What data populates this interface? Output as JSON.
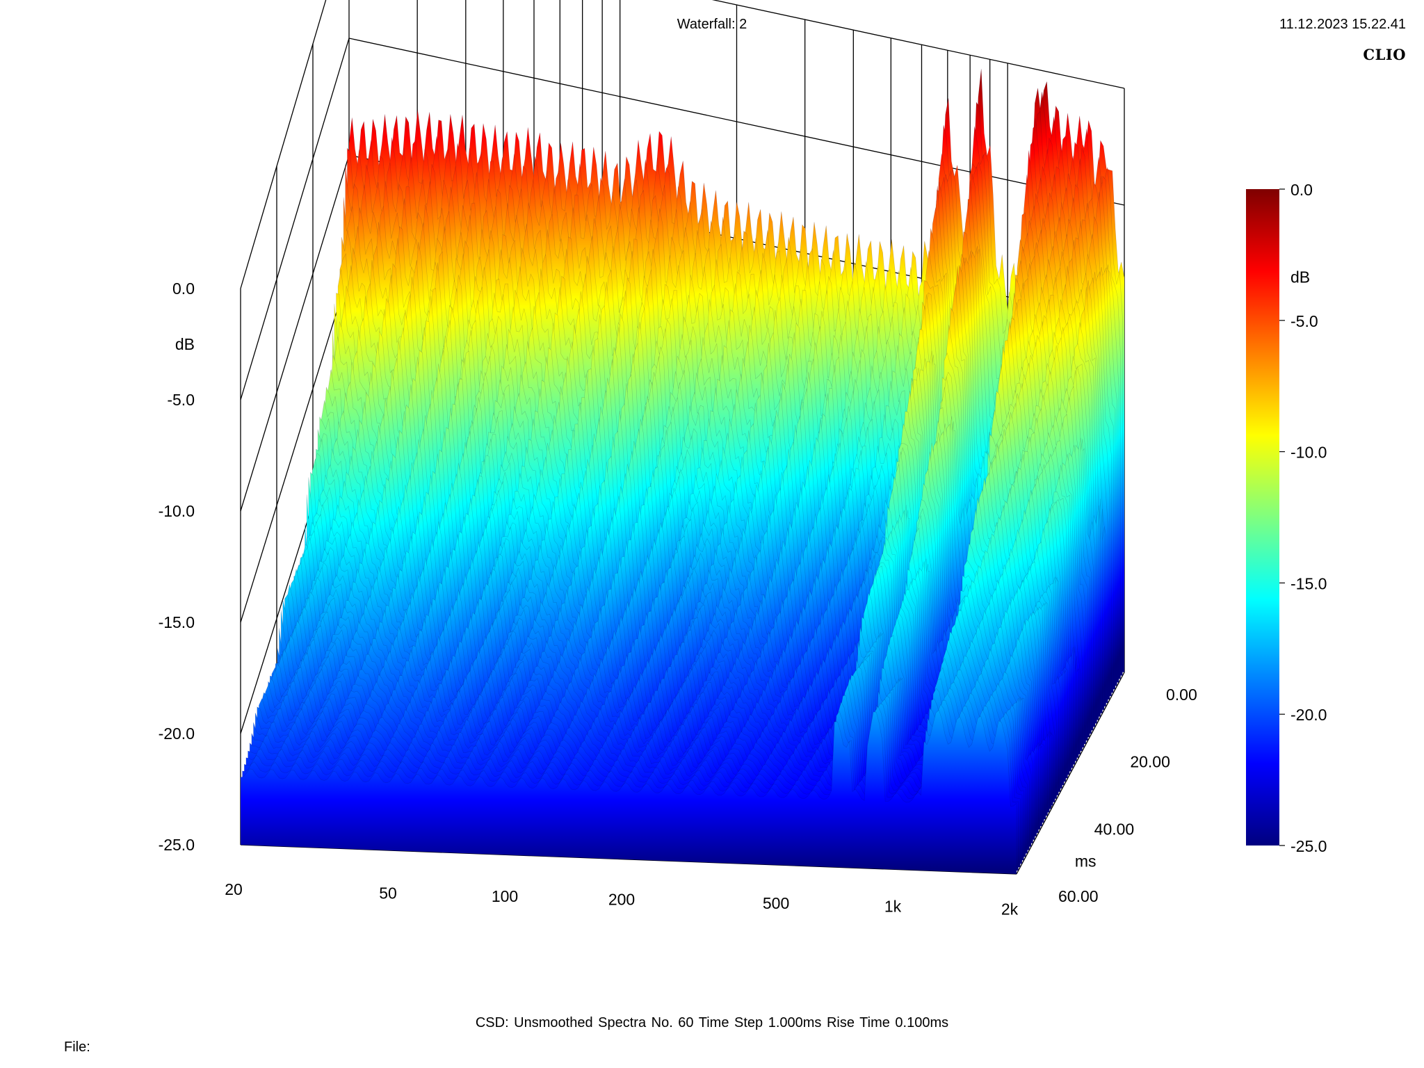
{
  "header": {
    "title": "Waterfall: 2",
    "timestamp": "11.12.2023 15.22.41",
    "brand": "CLIO"
  },
  "footer": {
    "info": "CSD:   Unsmoothed   Spectra No. 60   Time Step 1.000ms   Rise Time 0.100ms",
    "file_label": "File:"
  },
  "colors": {
    "scale": [
      "#00007f",
      "#0000ff",
      "#007fff",
      "#00ffff",
      "#7fff7f",
      "#ffff00",
      "#ff7f00",
      "#ff0000",
      "#7f0000"
    ],
    "axes": "#000000",
    "background": "#ffffff"
  },
  "chart_data": {
    "type": "waterfall",
    "title": "Waterfall: 2",
    "x_axis": {
      "scale": "log",
      "range": [
        20,
        2000
      ],
      "ticks": [
        {
          "value": 20,
          "label": "20"
        },
        {
          "value": 50,
          "label": "50"
        },
        {
          "value": 100,
          "label": "100"
        },
        {
          "value": 200,
          "label": "200"
        },
        {
          "value": 500,
          "label": "500"
        },
        {
          "value": 1000,
          "label": "1k"
        },
        {
          "value": 2000,
          "label": "2k"
        }
      ],
      "minor_gridlines": [
        30,
        40,
        60,
        70,
        80,
        90,
        300,
        400,
        600,
        700,
        800,
        900
      ]
    },
    "y_axis": {
      "label": "dB",
      "range": [
        -25,
        0
      ],
      "ticks": [
        "0.0",
        "-5.0",
        "-10.0",
        "-15.0",
        "-20.0",
        "-25.0"
      ]
    },
    "z_axis": {
      "label": "ms",
      "range": [
        0,
        60
      ],
      "ticks": [
        "0.00",
        "20.00",
        "40.00",
        "60.00"
      ]
    },
    "colorbar": {
      "label": "dB",
      "range": [
        -25,
        0
      ],
      "ticks": [
        "0.0",
        "-5.0",
        "-10.0",
        "-15.0",
        "-20.0",
        "-25.0"
      ]
    },
    "spectra_count": 60,
    "time_step_ms": 1.0,
    "rise_time_ms": 0.1,
    "front_spectrum_envelope": {
      "freq_hz": [
        20,
        25,
        30,
        40,
        50,
        60,
        70,
        80,
        90,
        100,
        115,
        130,
        150,
        175,
        200,
        250,
        300,
        400,
        500,
        600,
        650,
        700,
        750,
        800,
        850,
        900,
        950,
        1000,
        1100,
        1200,
        1300,
        1400,
        1500,
        1600,
        1700,
        1800,
        1900,
        2000
      ],
      "level_db": [
        -9.5,
        -9.0,
        -8.5,
        -8.3,
        -8.5,
        -8.2,
        -8.6,
        -8.3,
        -8.5,
        -8.8,
        -7.5,
        -6.8,
        -8.6,
        -9.2,
        -9.4,
        -9.5,
        -9.6,
        -9.8,
        -9.7,
        -9.8,
        -8.2,
        -2.5,
        -6.5,
        -7.5,
        -1.0,
        -4.5,
        -9.2,
        -9.6,
        -9.2,
        -0.5,
        -2.0,
        -2.5,
        -3.0,
        -2.0,
        -4.0,
        -2.5,
        -6.0,
        -9.0
      ]
    },
    "decay_floor_db": -22
  }
}
